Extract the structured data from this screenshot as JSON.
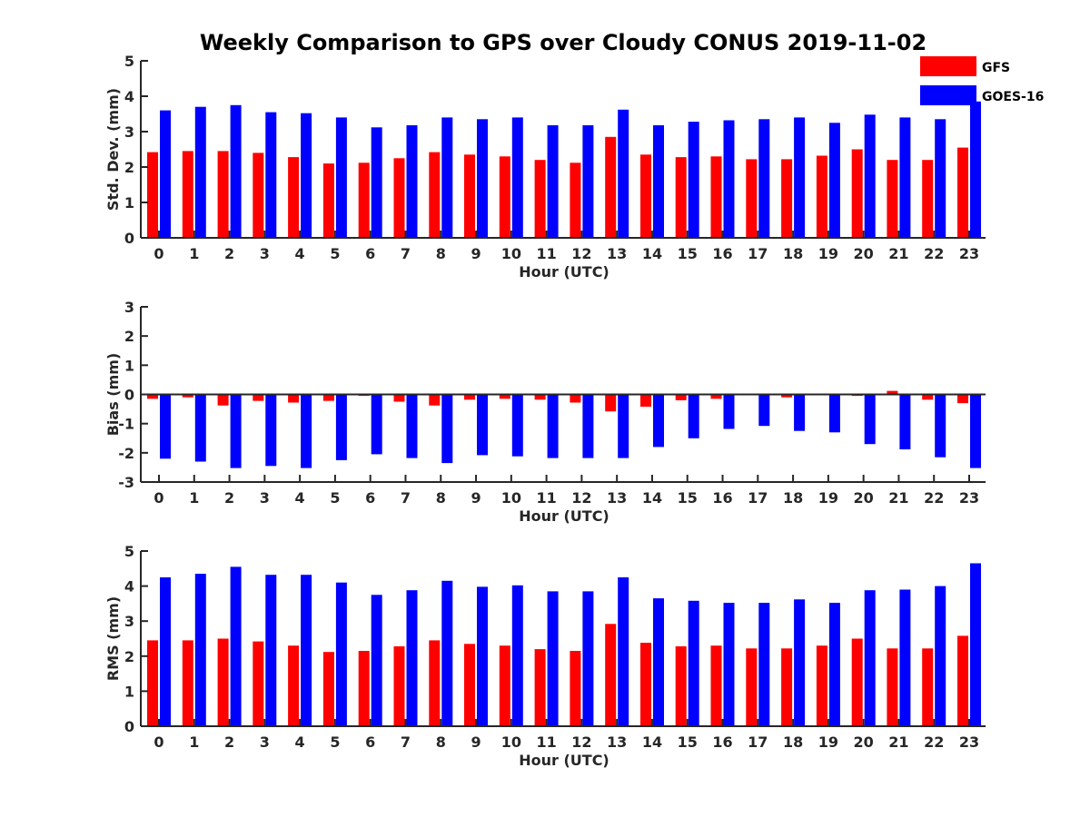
{
  "title": "Weekly Comparison to GPS over Cloudy CONUS 2019-11-02",
  "legend": [
    {
      "name": "GFS",
      "color": "#ff0000"
    },
    {
      "name": "GOES-16",
      "color": "#0000ff"
    }
  ],
  "chart_data": [
    {
      "type": "bar",
      "categories": [
        "0",
        "1",
        "2",
        "3",
        "4",
        "5",
        "6",
        "7",
        "8",
        "9",
        "10",
        "11",
        "12",
        "13",
        "14",
        "15",
        "16",
        "17",
        "18",
        "19",
        "20",
        "21",
        "22",
        "23"
      ],
      "xlabel": "Hour (UTC)",
      "ylabel": "Std. Dev. (mm)",
      "ylim": [
        0,
        5
      ],
      "yticks": [
        0,
        1,
        2,
        3,
        4,
        5
      ],
      "series": [
        {
          "name": "GFS",
          "values": [
            2.42,
            2.45,
            2.45,
            2.4,
            2.28,
            2.1,
            2.12,
            2.25,
            2.42,
            2.35,
            2.3,
            2.2,
            2.12,
            2.85,
            2.35,
            2.28,
            2.3,
            2.22,
            2.22,
            2.32,
            2.5,
            2.2,
            2.2,
            2.55
          ]
        },
        {
          "name": "GOES-16",
          "values": [
            3.6,
            3.7,
            3.75,
            3.55,
            3.52,
            3.4,
            3.12,
            3.18,
            3.4,
            3.35,
            3.4,
            3.18,
            3.18,
            3.62,
            3.18,
            3.28,
            3.32,
            3.35,
            3.4,
            3.25,
            3.48,
            3.4,
            3.35,
            3.85
          ]
        }
      ]
    },
    {
      "type": "bar",
      "categories": [
        "0",
        "1",
        "2",
        "3",
        "4",
        "5",
        "6",
        "7",
        "8",
        "9",
        "10",
        "11",
        "12",
        "13",
        "14",
        "15",
        "16",
        "17",
        "18",
        "19",
        "20",
        "21",
        "22",
        "23"
      ],
      "xlabel": "Hour (UTC)",
      "ylabel": "Bias (mm)",
      "ylim": [
        -3,
        3
      ],
      "yticks": [
        -3,
        -2,
        -1,
        0,
        1,
        2,
        3
      ],
      "series": [
        {
          "name": "GFS",
          "values": [
            -0.15,
            -0.1,
            -0.38,
            -0.22,
            -0.28,
            -0.22,
            -0.05,
            -0.25,
            -0.38,
            -0.18,
            -0.15,
            -0.18,
            -0.28,
            -0.58,
            -0.42,
            -0.2,
            -0.15,
            -0.02,
            -0.1,
            -0.02,
            -0.05,
            0.12,
            -0.18,
            -0.3
          ]
        },
        {
          "name": "GOES-16",
          "values": [
            -2.2,
            -2.3,
            -2.52,
            -2.45,
            -2.52,
            -2.25,
            -2.05,
            -2.18,
            -2.35,
            -2.08,
            -2.12,
            -2.18,
            -2.18,
            -2.18,
            -1.8,
            -1.5,
            -1.18,
            -1.08,
            -1.25,
            -1.3,
            -1.7,
            -1.88,
            -2.15,
            -2.52
          ]
        }
      ]
    },
    {
      "type": "bar",
      "categories": [
        "0",
        "1",
        "2",
        "3",
        "4",
        "5",
        "6",
        "7",
        "8",
        "9",
        "10",
        "11",
        "12",
        "13",
        "14",
        "15",
        "16",
        "17",
        "18",
        "19",
        "20",
        "21",
        "22",
        "23"
      ],
      "xlabel": "Hour (UTC)",
      "ylabel": "RMS (mm)",
      "ylim": [
        0,
        5
      ],
      "yticks": [
        0,
        1,
        2,
        3,
        4,
        5
      ],
      "series": [
        {
          "name": "GFS",
          "values": [
            2.45,
            2.45,
            2.5,
            2.42,
            2.3,
            2.12,
            2.15,
            2.28,
            2.45,
            2.35,
            2.3,
            2.2,
            2.15,
            2.92,
            2.38,
            2.28,
            2.3,
            2.22,
            2.22,
            2.3,
            2.5,
            2.22,
            2.22,
            2.58
          ]
        },
        {
          "name": "GOES-16",
          "values": [
            4.25,
            4.35,
            4.55,
            4.32,
            4.32,
            4.1,
            3.75,
            3.88,
            4.15,
            3.98,
            4.02,
            3.85,
            3.85,
            4.25,
            3.65,
            3.58,
            3.52,
            3.52,
            3.62,
            3.52,
            3.88,
            3.9,
            4.0,
            4.65
          ]
        }
      ]
    }
  ]
}
